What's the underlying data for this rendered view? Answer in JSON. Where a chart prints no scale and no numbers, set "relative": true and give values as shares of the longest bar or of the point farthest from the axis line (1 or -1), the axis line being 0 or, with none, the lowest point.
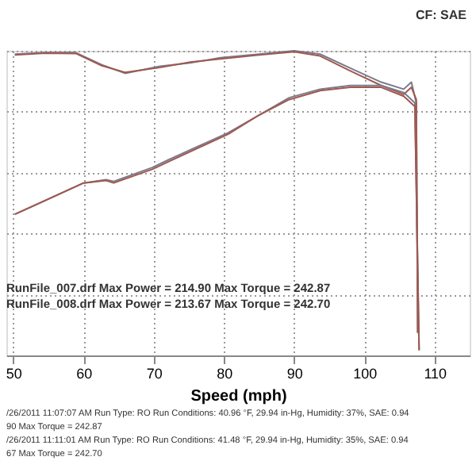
{
  "chart_data": {
    "type": "line",
    "relative": true,
    "xlabel": "Speed (mph)",
    "xlim": [
      49,
      115
    ],
    "xticks": [
      50,
      60,
      70,
      80,
      90,
      100,
      110
    ],
    "grid": true,
    "marker": "none",
    "line_style": "solid",
    "series": [
      {
        "color": "#7a7a8c",
        "x": [
          50.2,
          54.5,
          58.9,
          62.6,
          65.9,
          70.9,
          75.2,
          79.5,
          85.0,
          90.0,
          93.7,
          98.0,
          102.4,
          105.6,
          106.7,
          107.4,
          107.6
        ],
        "values": [
          0.989,
          0.994,
          0.994,
          0.954,
          0.926,
          0.949,
          0.96,
          0.977,
          0.989,
          1.0,
          0.989,
          0.943,
          0.897,
          0.874,
          0.897,
          0.829,
          0.074
        ]
      },
      {
        "color": "#a0584f",
        "x": [
          50.2,
          54.5,
          58.9,
          62.6,
          65.9,
          70.9,
          75.2,
          79.5,
          85.0,
          90.0,
          93.7,
          98.0,
          102.4,
          105.6,
          106.7,
          107.4,
          107.6
        ],
        "values": [
          0.986,
          0.992,
          0.991,
          0.951,
          0.929,
          0.945,
          0.963,
          0.973,
          0.986,
          0.997,
          0.983,
          0.934,
          0.886,
          0.857,
          0.88,
          0.84,
          0.074
        ]
      },
      {
        "color": "#7a7a8c",
        "x": [
          50.2,
          60.0,
          63.2,
          64.3,
          69.8,
          71.9,
          80.6,
          85.0,
          89.3,
          93.7,
          98.0,
          102.4,
          105.6,
          107.2,
          107.8
        ],
        "values": [
          0.463,
          0.566,
          0.577,
          0.571,
          0.617,
          0.64,
          0.731,
          0.789,
          0.846,
          0.874,
          0.886,
          0.886,
          0.863,
          0.829,
          0.017
        ]
      },
      {
        "color": "#a0584f",
        "x": [
          50.2,
          60.0,
          63.2,
          64.3,
          69.8,
          71.9,
          80.6,
          85.0,
          89.3,
          93.7,
          98.0,
          102.4,
          105.6,
          107.2,
          107.8
        ],
        "values": [
          0.463,
          0.566,
          0.574,
          0.566,
          0.611,
          0.634,
          0.726,
          0.789,
          0.84,
          0.869,
          0.88,
          0.88,
          0.851,
          0.817,
          0.017
        ]
      }
    ],
    "annotations": [
      "CF: SAE",
      "RunFile_007.drf Max Power = 214.90     Max Torque = 242.87",
      "RunFile_008.drf Max Power = 213.67     Max Torque = 242.70",
      "/26/2011 11:07:07 AM  Run Type: RO  Run Conditions: 40.96 °F, 29.94 in-Hg,  Humidity: 37%, SAE: 0.94",
      "90  Max Torque = 242.87",
      "/26/2011 11:11:01 AM  Run Type: RO  Run Conditions: 41.48 °F, 29.94 in-Hg,  Humidity: 35%, SAE: 0.94",
      "67  Max Torque = 242.70"
    ]
  }
}
